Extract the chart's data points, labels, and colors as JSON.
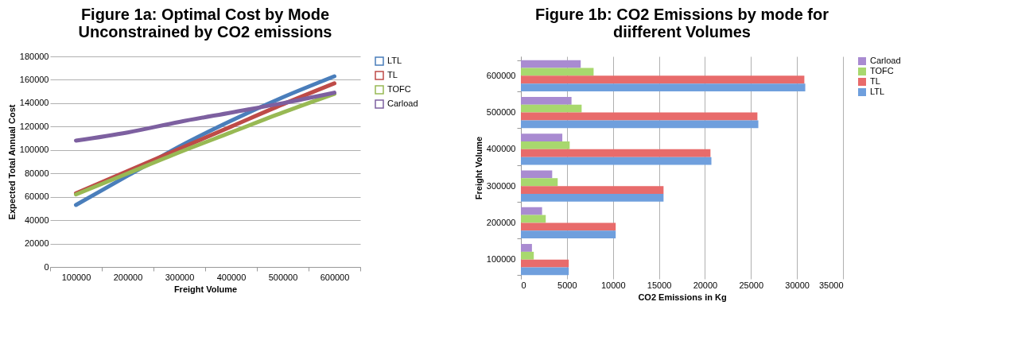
{
  "chart_data": [
    {
      "type": "line",
      "title": "Figure 1a: Optimal Cost by Mode Unconstrained by CO2 emissions",
      "xlabel": "Freight Volume",
      "ylabel": "Expected Total Annual Cost",
      "categories": [
        "100000",
        "200000",
        "300000",
        "400000",
        "500000",
        "600000"
      ],
      "series": [
        {
          "name": "LTL",
          "color": "#4a7ebb",
          "values": [
            53000,
            78000,
            103000,
            125000,
            145000,
            163000
          ]
        },
        {
          "name": "TL",
          "color": "#be4b48",
          "values": [
            63000,
            82000,
            101000,
            120000,
            139000,
            157000
          ]
        },
        {
          "name": "TOFC",
          "color": "#98b954",
          "values": [
            62000,
            80000,
            98000,
            115000,
            132000,
            148000
          ]
        },
        {
          "name": "Carload",
          "color": "#7d60a0",
          "values": [
            108000,
            115000,
            124000,
            132000,
            140000,
            149000
          ]
        }
      ],
      "ylim": [
        0,
        180000
      ],
      "yticks": [
        0,
        20000,
        40000,
        60000,
        80000,
        100000,
        120000,
        140000,
        160000,
        180000
      ],
      "grid": "y",
      "legend": "right",
      "marker": "none",
      "line_style": "solid"
    },
    {
      "type": "bar",
      "orientation": "horizontal",
      "title": "Figure 1b: CO2 Emissions by mode for diifferent Volumes",
      "xlabel": "CO2 Emissions in Kg",
      "ylabel": "Freight Volume",
      "categories": [
        "600000",
        "500000",
        "400000",
        "300000",
        "200000",
        "100000"
      ],
      "series": [
        {
          "name": "Carload",
          "color": "#a98bd1",
          "values": [
            6500,
            5500,
            4500,
            3400,
            2300,
            1200
          ]
        },
        {
          "name": "TOFC",
          "color": "#a8d86e",
          "values": [
            7900,
            6600,
            5300,
            4000,
            2700,
            1400
          ]
        },
        {
          "name": "TL",
          "color": "#e86b6b",
          "values": [
            30800,
            25700,
            20600,
            15500,
            10300,
            5200
          ]
        },
        {
          "name": "LTL",
          "color": "#6f9fdd",
          "values": [
            30900,
            25800,
            20700,
            15500,
            10300,
            5200
          ]
        }
      ],
      "xlim": [
        0,
        35000
      ],
      "xticks": [
        0,
        5000,
        10000,
        15000,
        20000,
        25000,
        30000,
        35000
      ],
      "grid": "x",
      "legend": "right"
    }
  ]
}
